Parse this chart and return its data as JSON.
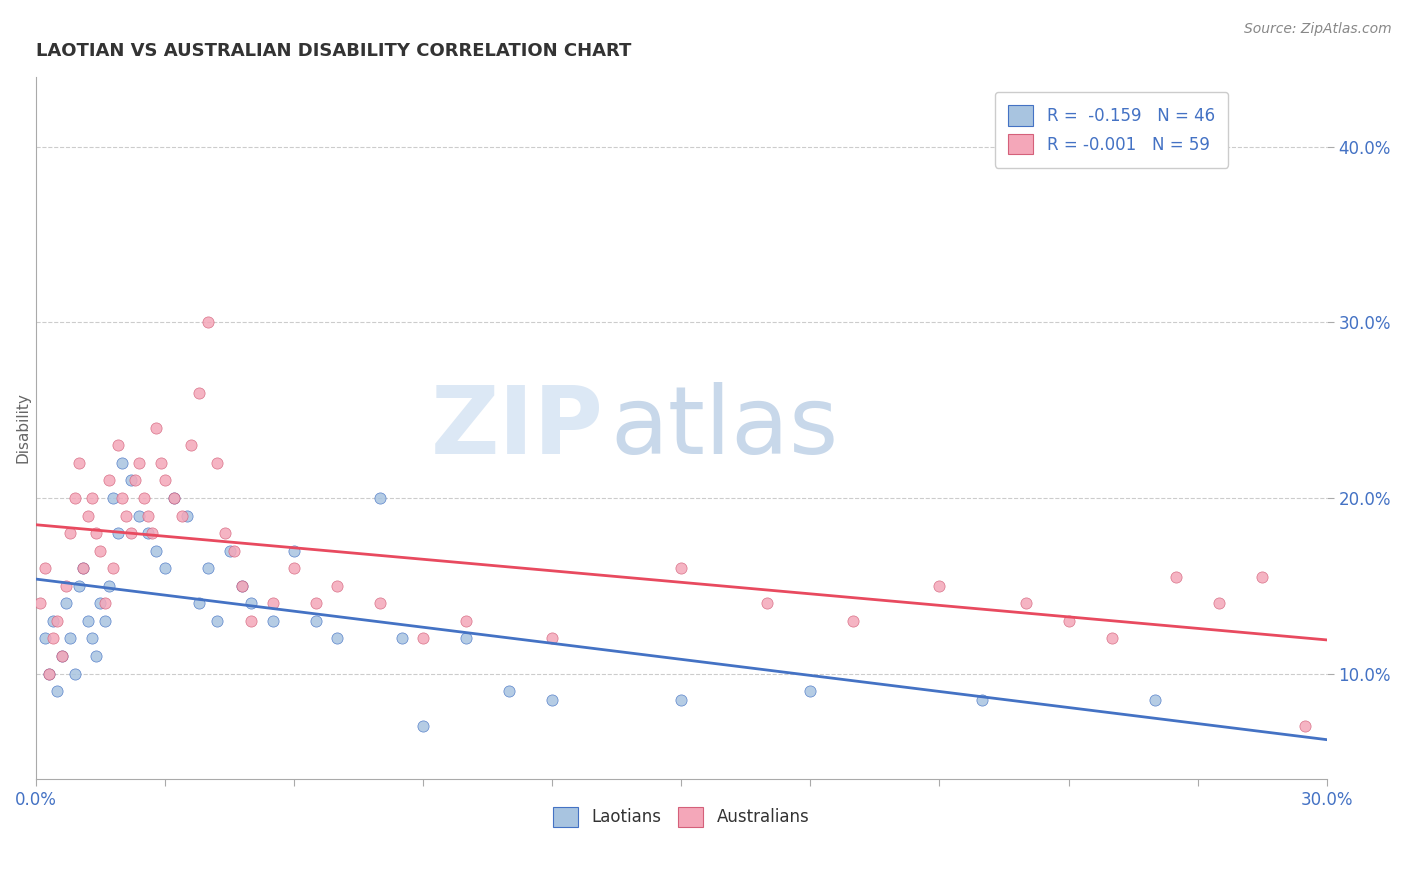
{
  "title": "LAOTIAN VS AUSTRALIAN DISABILITY CORRELATION CHART",
  "source": "Source: ZipAtlas.com",
  "ylabel": "Disability",
  "ylabel_right_ticks": [
    10.0,
    20.0,
    30.0,
    40.0
  ],
  "xlim": [
    0.0,
    0.3
  ],
  "ylim": [
    0.04,
    0.44
  ],
  "laotians_R": -0.159,
  "laotians_N": 46,
  "australians_R": -0.001,
  "australians_N": 59,
  "laotian_color": "#a8c4e0",
  "australian_color": "#f4a7b9",
  "laotian_line_color": "#4472c4",
  "australian_line_color": "#e84a5f",
  "background_color": "#ffffff",
  "laotian_x": [
    0.002,
    0.003,
    0.004,
    0.005,
    0.006,
    0.007,
    0.008,
    0.009,
    0.01,
    0.011,
    0.012,
    0.013,
    0.014,
    0.015,
    0.016,
    0.017,
    0.018,
    0.019,
    0.02,
    0.022,
    0.024,
    0.026,
    0.028,
    0.03,
    0.032,
    0.035,
    0.038,
    0.04,
    0.042,
    0.045,
    0.048,
    0.05,
    0.055,
    0.06,
    0.065,
    0.07,
    0.08,
    0.085,
    0.09,
    0.1,
    0.11,
    0.12,
    0.15,
    0.18,
    0.22,
    0.26
  ],
  "laotian_y": [
    0.12,
    0.1,
    0.13,
    0.09,
    0.11,
    0.14,
    0.12,
    0.1,
    0.15,
    0.16,
    0.13,
    0.12,
    0.11,
    0.14,
    0.13,
    0.15,
    0.2,
    0.18,
    0.22,
    0.21,
    0.19,
    0.18,
    0.17,
    0.16,
    0.2,
    0.19,
    0.14,
    0.16,
    0.13,
    0.17,
    0.15,
    0.14,
    0.13,
    0.17,
    0.13,
    0.12,
    0.2,
    0.12,
    0.07,
    0.12,
    0.09,
    0.085,
    0.085,
    0.09,
    0.085,
    0.085
  ],
  "australian_x": [
    0.001,
    0.002,
    0.003,
    0.004,
    0.005,
    0.006,
    0.007,
    0.008,
    0.009,
    0.01,
    0.011,
    0.012,
    0.013,
    0.014,
    0.015,
    0.016,
    0.017,
    0.018,
    0.019,
    0.02,
    0.021,
    0.022,
    0.023,
    0.024,
    0.025,
    0.026,
    0.027,
    0.028,
    0.029,
    0.03,
    0.032,
    0.034,
    0.036,
    0.038,
    0.04,
    0.042,
    0.044,
    0.046,
    0.048,
    0.05,
    0.055,
    0.06,
    0.065,
    0.07,
    0.08,
    0.09,
    0.1,
    0.12,
    0.15,
    0.17,
    0.19,
    0.21,
    0.23,
    0.24,
    0.25,
    0.265,
    0.275,
    0.285,
    0.295
  ],
  "australian_y": [
    0.14,
    0.16,
    0.1,
    0.12,
    0.13,
    0.11,
    0.15,
    0.18,
    0.2,
    0.22,
    0.16,
    0.19,
    0.2,
    0.18,
    0.17,
    0.14,
    0.21,
    0.16,
    0.23,
    0.2,
    0.19,
    0.18,
    0.21,
    0.22,
    0.2,
    0.19,
    0.18,
    0.24,
    0.22,
    0.21,
    0.2,
    0.19,
    0.23,
    0.26,
    0.3,
    0.22,
    0.18,
    0.17,
    0.15,
    0.13,
    0.14,
    0.16,
    0.14,
    0.15,
    0.14,
    0.12,
    0.13,
    0.12,
    0.16,
    0.14,
    0.13,
    0.15,
    0.14,
    0.13,
    0.12,
    0.155,
    0.14,
    0.155,
    0.07
  ]
}
